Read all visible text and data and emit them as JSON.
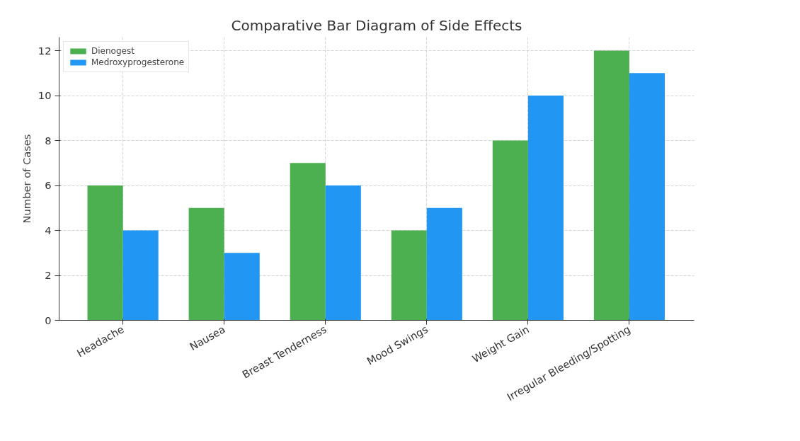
{
  "chart_data": {
    "type": "bar",
    "title": "Comparative Bar Diagram of Side Effects",
    "ylabel": "Number of Cases",
    "categories": [
      "Headache",
      "Nausea",
      "Breast Tenderness",
      "Mood Swings",
      "Weight Gain",
      "Irregular Bleeding/Spotting"
    ],
    "series": [
      {
        "name": "Dienogest",
        "color": "#4caf50",
        "values": [
          6,
          5,
          7,
          4,
          8,
          12
        ]
      },
      {
        "name": "Medroxyprogesterone",
        "color": "#2196f3",
        "values": [
          4,
          3,
          6,
          5,
          10,
          11
        ]
      }
    ],
    "ylim": [
      0,
      12.6
    ],
    "yticks": [
      0,
      2,
      4,
      6,
      8,
      10,
      12
    ],
    "grid": true,
    "legend": "top left"
  }
}
